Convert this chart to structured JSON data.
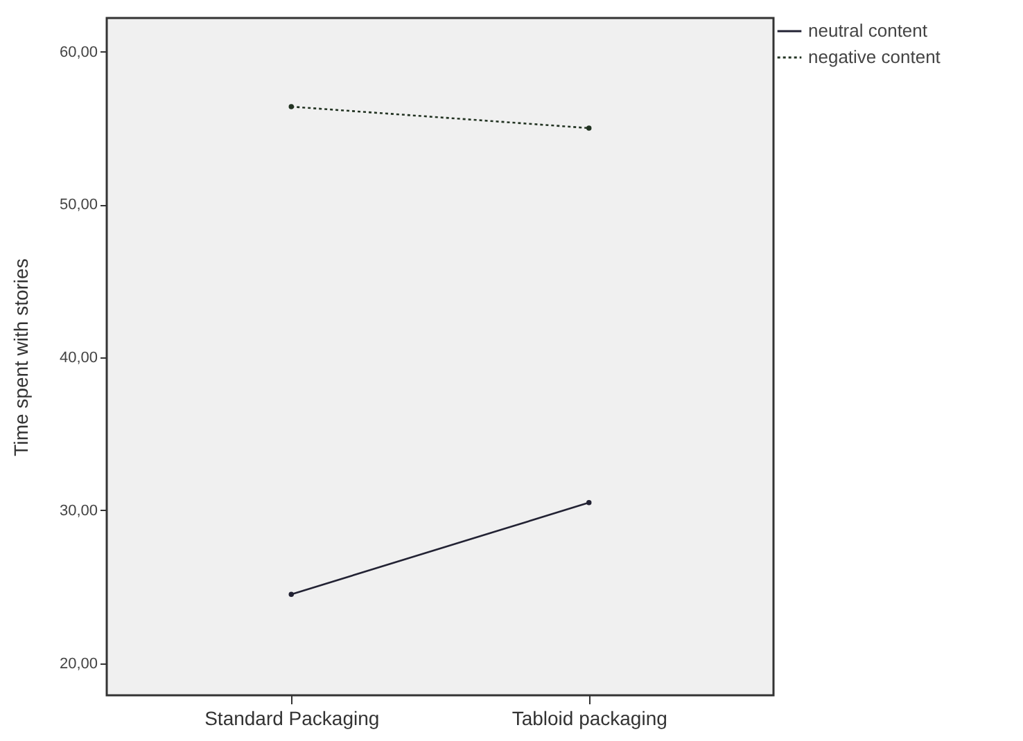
{
  "chart_data": {
    "type": "line",
    "categories": [
      "Standard Packaging",
      "Tabloid packaging"
    ],
    "series": [
      {
        "name": "neutral content",
        "color": "#222233",
        "values": [
          24.5,
          30.5
        ],
        "line_style": "solid"
      },
      {
        "name": "negative content",
        "color": "#223322",
        "values": [
          56.4,
          55.0
        ],
        "line_style": "dotted"
      }
    ],
    "ylabel": "Time spent with stories",
    "ylim": [
      17.9,
      62.2
    ],
    "yticks": [
      {
        "value": 20,
        "label": "20,00"
      },
      {
        "value": 30,
        "label": "30,00"
      },
      {
        "value": 40,
        "label": "40,00"
      },
      {
        "value": 50,
        "label": "50,00"
      },
      {
        "value": 60,
        "label": "60,00"
      }
    ],
    "grid": false,
    "legend": "top right",
    "marker": "circle"
  }
}
